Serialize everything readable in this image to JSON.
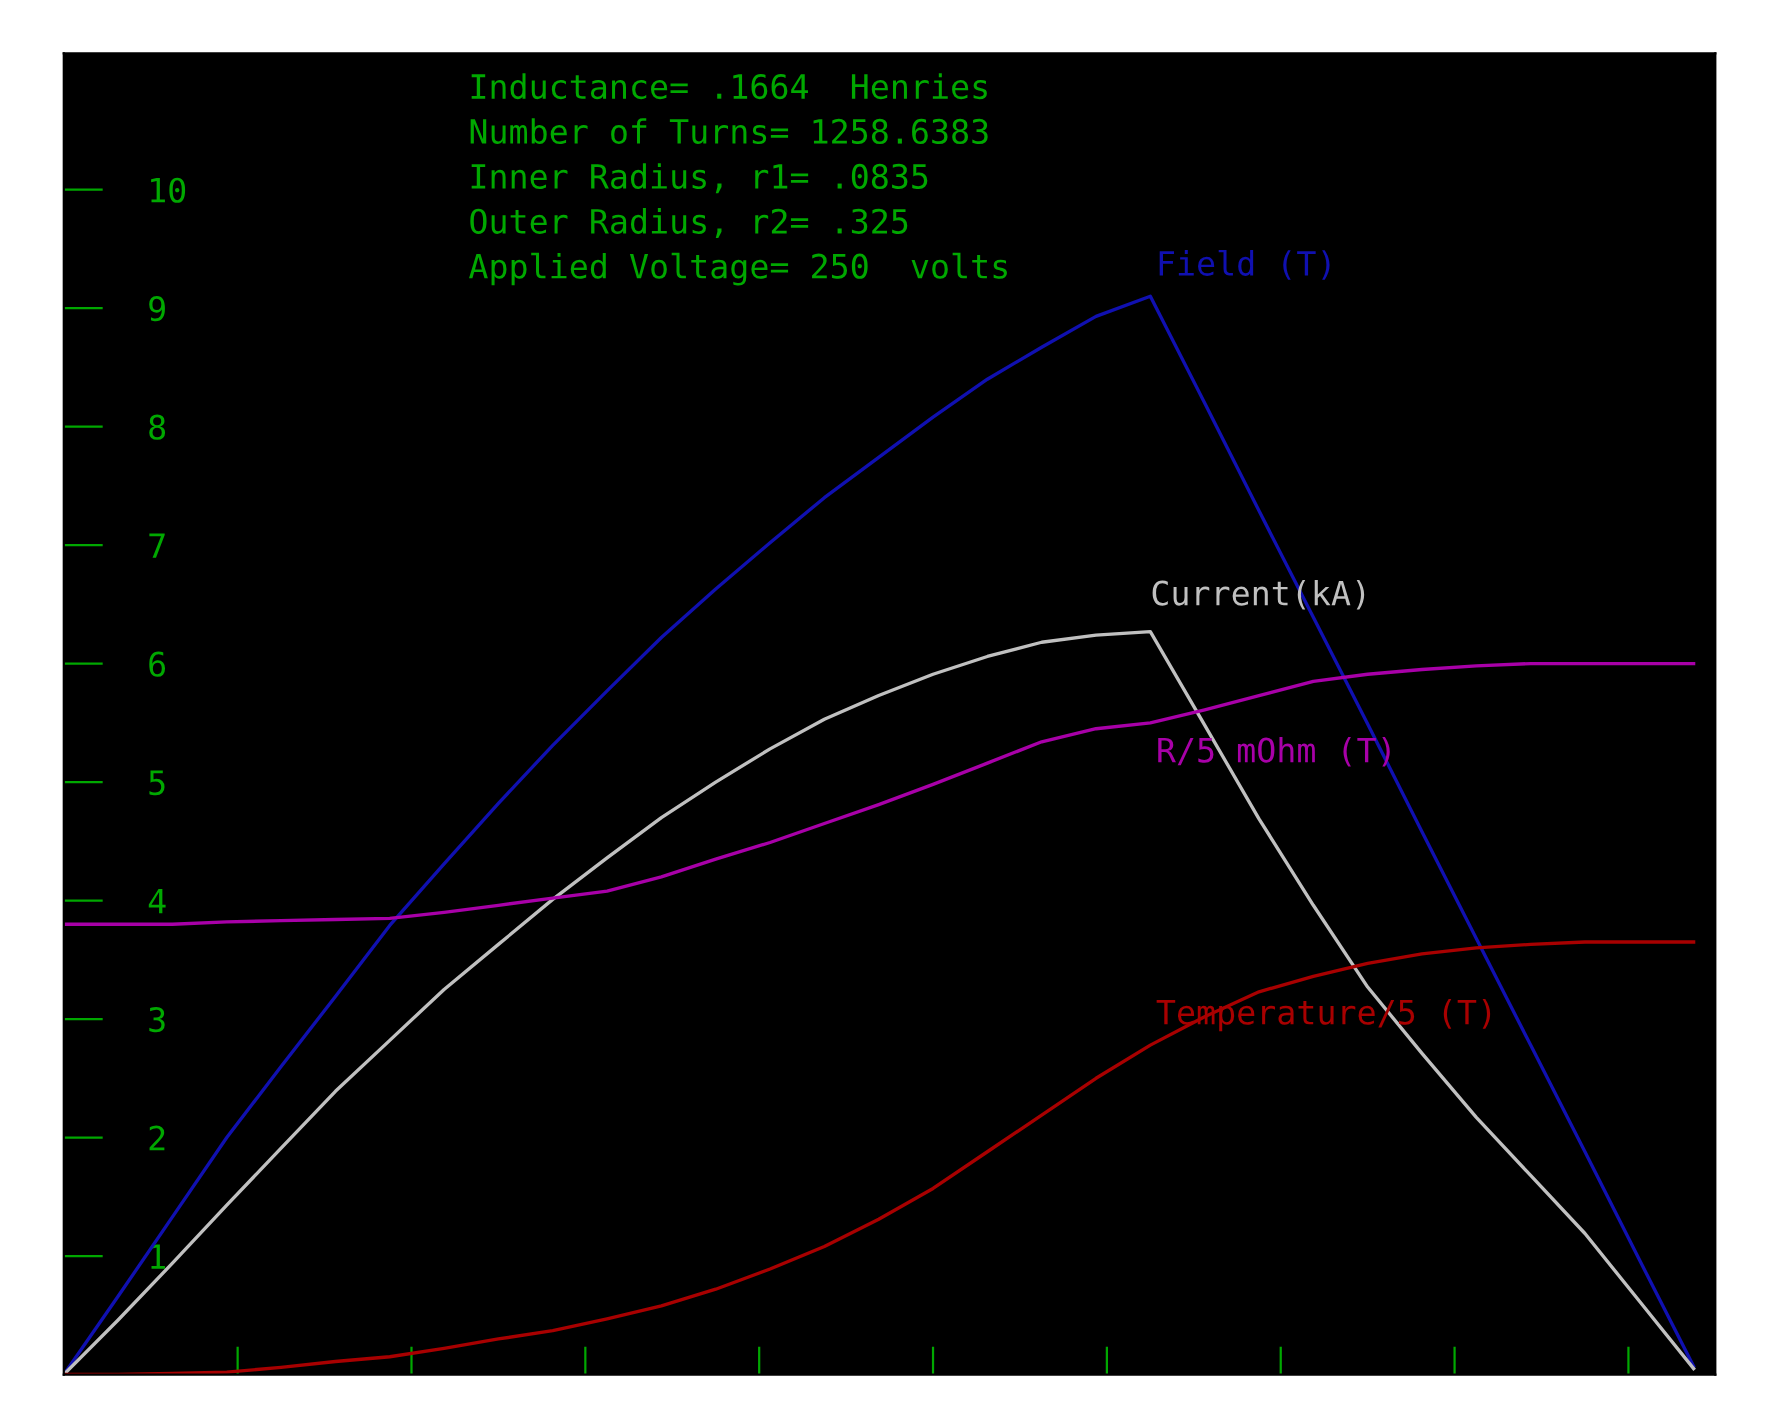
{
  "chart_data": {
    "type": "line",
    "annotations": [
      "Inductance= .1664  Henries",
      "Number of Turns= 1258.6383",
      "Inner Radius, r1= .0835",
      "Outer Radius, r2= .325",
      "Applied Voltage= 250  volts"
    ],
    "categories": [
      null,
      null,
      null,
      null,
      null,
      null,
      null,
      null,
      null,
      null,
      null,
      null,
      null,
      null,
      null,
      null,
      null,
      null,
      null,
      null,
      null,
      null,
      null,
      null,
      null,
      null,
      null,
      null,
      null,
      null,
      null
    ],
    "series": [
      {
        "name": "Field (T)",
        "color": "#1010b0",
        "values": [
          0,
          0.66,
          1.33,
          2.0,
          2.6,
          3.19,
          3.79,
          4.31,
          4.82,
          5.31,
          5.77,
          6.22,
          6.63,
          7.02,
          7.4,
          7.74,
          8.08,
          8.4,
          8.67,
          8.93,
          9.1,
          8.2,
          7.29,
          6.39,
          5.49,
          4.58,
          3.68,
          2.78,
          1.88,
          0.97,
          0.07
        ]
      },
      {
        "name": "Current(kA)",
        "color": "#c0c0c0",
        "values": [
          0,
          0.46,
          0.94,
          1.43,
          1.91,
          2.39,
          2.82,
          3.25,
          3.63,
          4.01,
          4.36,
          4.7,
          5.0,
          5.28,
          5.53,
          5.73,
          5.91,
          6.06,
          6.18,
          6.24,
          6.27,
          5.48,
          4.69,
          3.96,
          3.27,
          2.71,
          2.17,
          1.68,
          1.19,
          0.62,
          0.05
        ]
      },
      {
        "name": "R/5 mOhm (T)",
        "color": "#a800a8",
        "values": [
          3.8,
          3.8,
          3.8,
          3.82,
          3.83,
          3.84,
          3.85,
          3.9,
          3.96,
          4.02,
          4.08,
          4.2,
          4.35,
          4.49,
          4.65,
          4.81,
          4.98,
          5.16,
          5.34,
          5.45,
          5.5,
          5.61,
          5.73,
          5.85,
          5.91,
          5.95,
          5.98,
          6.0,
          6.0,
          6.0,
          6.0
        ]
      },
      {
        "name": "Temperature/5 (T)",
        "color": "#a80000",
        "values": [
          0,
          0,
          0.01,
          0.02,
          0.06,
          0.11,
          0.15,
          0.22,
          0.3,
          0.37,
          0.47,
          0.58,
          0.72,
          0.89,
          1.08,
          1.31,
          1.57,
          1.88,
          2.19,
          2.5,
          2.78,
          3.02,
          3.23,
          3.36,
          3.47,
          3.55,
          3.6,
          3.63,
          3.65,
          3.65,
          3.65
        ]
      }
    ],
    "ylim": [
      0,
      11.15
    ],
    "yticks": [
      1,
      2,
      3,
      4,
      5,
      6,
      7,
      8,
      9,
      10
    ],
    "tick_labels": "y",
    "grid": false,
    "legend": false,
    "marker": "none",
    "line_style": "solid"
  }
}
